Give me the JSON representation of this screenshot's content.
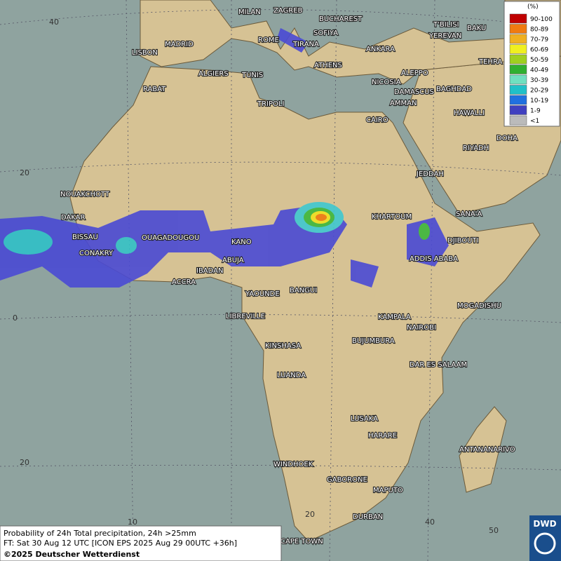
{
  "legend": {
    "title": "(%)",
    "items": [
      {
        "label": "90-100",
        "color": "#c00000"
      },
      {
        "label": "80-89",
        "color": "#f07a10"
      },
      {
        "label": "70-79",
        "color": "#f0b020"
      },
      {
        "label": "60-69",
        "color": "#f0f020"
      },
      {
        "label": "50-59",
        "color": "#a0d020"
      },
      {
        "label": "40-49",
        "color": "#30b030"
      },
      {
        "label": "30-39",
        "color": "#70e0c0"
      },
      {
        "label": "20-29",
        "color": "#20c0c8"
      },
      {
        "label": "10-19",
        "color": "#2070e0"
      },
      {
        "label": "1-9",
        "color": "#4040c0"
      },
      {
        "label": "<1",
        "color": "#bbbbbb"
      }
    ]
  },
  "cities": [
    "MILAN",
    "ZAGREB",
    "BUCHAREST",
    "ROME",
    "SOFIYA",
    "TIRANA",
    "MADRID",
    "LISBON",
    "ANKARA",
    "ATHENS",
    "ALGIERS",
    "TUNIS",
    "RABAT",
    "NICOSIA",
    "ALEPPO",
    "DAMASCUS",
    "AMMAN",
    "BAGHDAD",
    "T'BILISI",
    "YEREVAN",
    "BAKU",
    "TEHRA",
    "HAWALLI",
    "DOHA",
    "RIYADH",
    "JEDDAH",
    "SANA'A",
    "TRIPOLI",
    "CAIRO",
    "NOUAKCHOTT",
    "DAKAR",
    "BISSAU",
    "CONAKRY",
    "OUAGADOUGOU",
    "KANO",
    "ABUJA",
    "IBADAN",
    "ACCRA",
    "YAOUNDE",
    "BANGUI",
    "LIBREVILLE",
    "KHARTOUM",
    "DJIBOUTI",
    "ADDIS ABABA",
    "MOGADISHU",
    "KAMPALA",
    "NAIROBI",
    "BUJUMBURA",
    "KINSHASA",
    "DAR ES SALAAM",
    "LUANDA",
    "LUSAKA",
    "HARARE",
    "ANTANANARIVO",
    "WINDHOEK",
    "GABORONE",
    "MAPUTO",
    "DURBAN",
    "CAPE TOWN"
  ],
  "graticule_labels": [
    "40",
    "20",
    "0",
    "20",
    "10",
    "20",
    "40",
    "50"
  ],
  "info": [
    "Probability of 24h Total precipitation, 24h >25mm",
    "FT: Sat 30 Aug 12 UTC [ICON EPS 2025 Aug 29 00UTC +36h]",
    "©2025 Deutscher Wetterdienst"
  ],
  "logo": "DWD"
}
